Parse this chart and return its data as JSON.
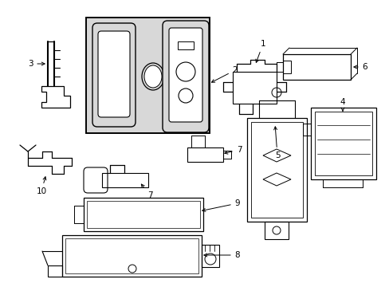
{
  "background_color": "#ffffff",
  "line_color": "#000000",
  "fig_width": 4.89,
  "fig_height": 3.6,
  "dpi": 100,
  "gray_fill": "#d8d8d8",
  "white": "#ffffff"
}
